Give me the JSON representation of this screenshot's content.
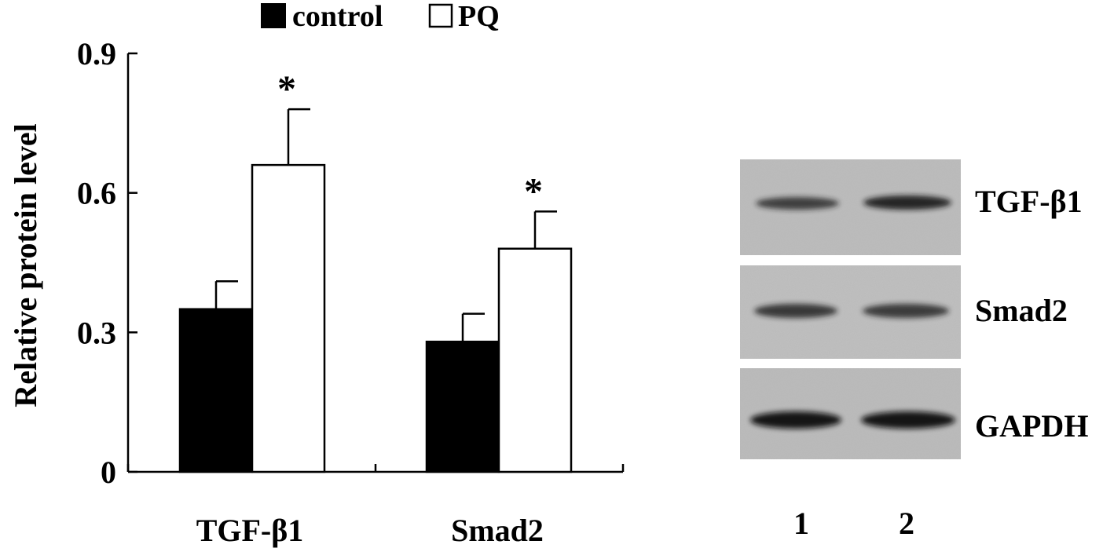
{
  "chart_data": {
    "type": "bar",
    "categories": [
      "TGF-β1",
      "Smad2"
    ],
    "series": [
      {
        "name": "control",
        "values": [
          0.35,
          0.28
        ],
        "errors": [
          0.06,
          0.06
        ],
        "fill": "#000000"
      },
      {
        "name": "PQ",
        "values": [
          0.66,
          0.48
        ],
        "errors": [
          0.12,
          0.08
        ],
        "fill": "#ffffff"
      }
    ],
    "significance": [
      {
        "category": 0,
        "series": 1,
        "mark": "*"
      },
      {
        "category": 1,
        "series": 1,
        "mark": "*"
      }
    ],
    "ylabel": "Relative protein level",
    "yticks": [
      0,
      0.3,
      0.6,
      0.9
    ],
    "ytick_labels": [
      "0",
      "0.3",
      "0.6",
      "0.9"
    ],
    "ylim": [
      0,
      0.9
    ],
    "grid": false,
    "legend": "top-center"
  },
  "blot": {
    "rows": [
      {
        "label": "TGF-β1",
        "intensity": [
          0.78,
          0.9
        ]
      },
      {
        "label": "Smad2",
        "intensity": [
          0.82,
          0.8
        ]
      },
      {
        "label": "GAPDH",
        "intensity": [
          0.95,
          0.95
        ]
      }
    ],
    "lanes": [
      "1",
      "2"
    ]
  }
}
